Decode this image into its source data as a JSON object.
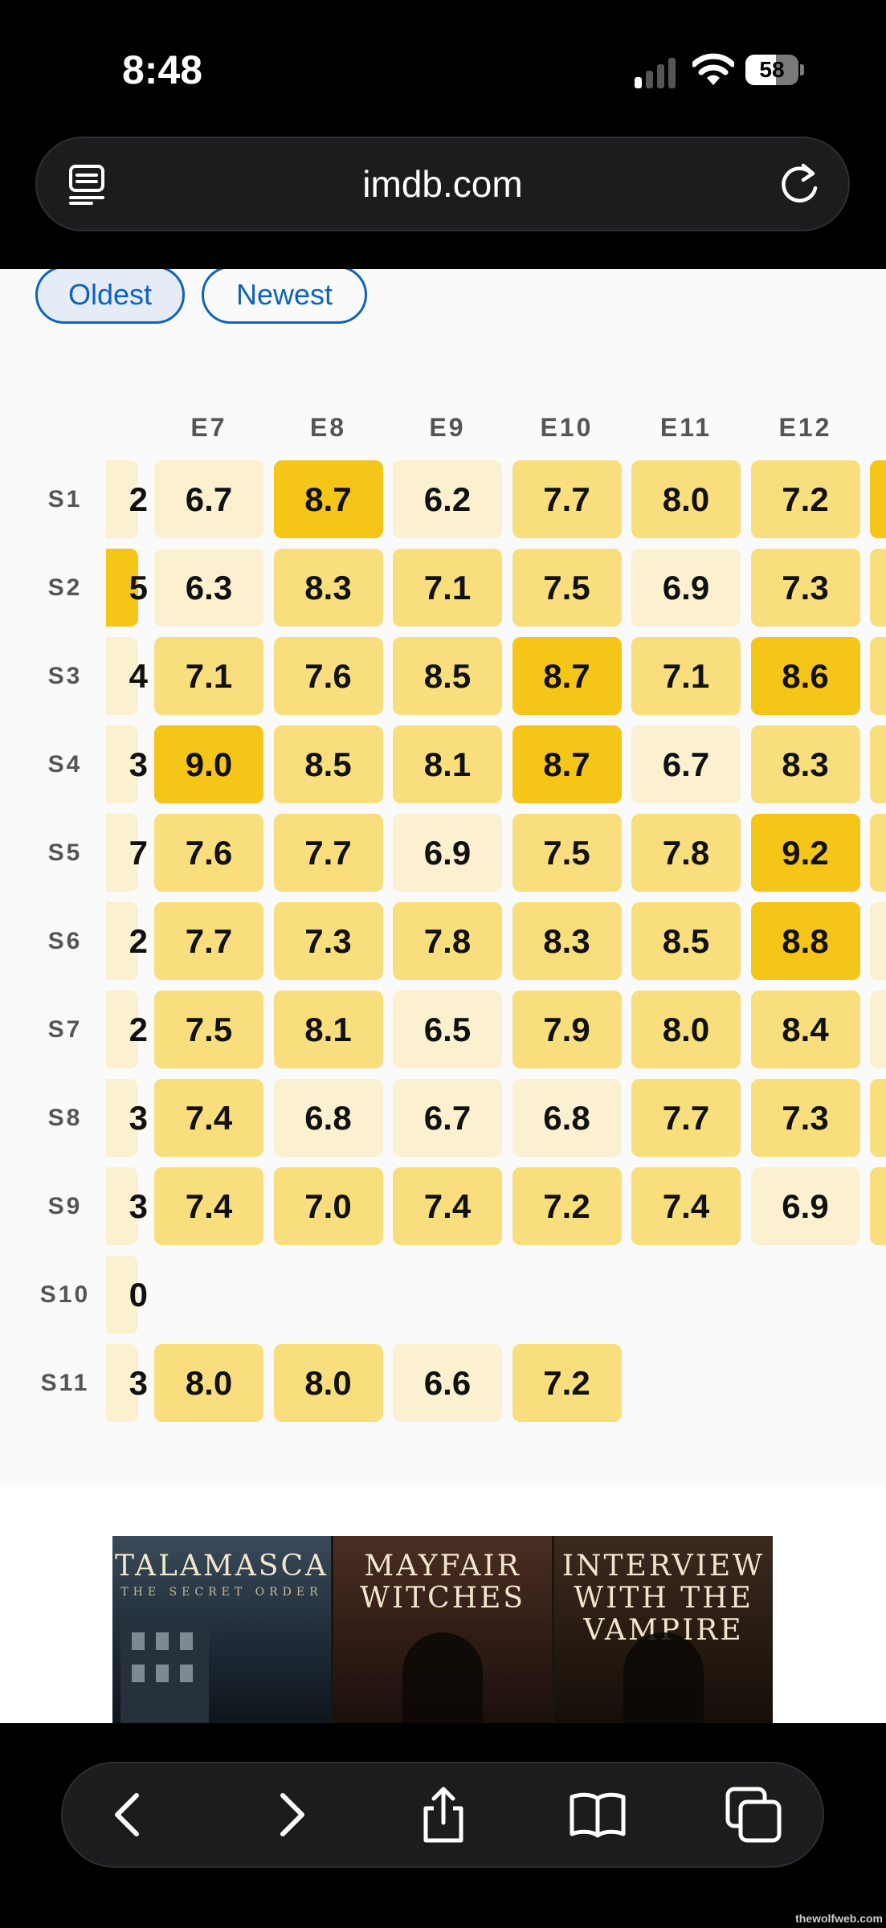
{
  "status_bar": {
    "time": "8:48",
    "battery_percent": "58",
    "battery_level": 0.58,
    "signal_bars": 1
  },
  "browser": {
    "url": "imdb.com"
  },
  "sort": {
    "options": [
      {
        "label": "Oldest",
        "active": true
      },
      {
        "label": "Newest",
        "active": false
      }
    ]
  },
  "grid": {
    "partial_column": [
      "2",
      "5",
      "4",
      "3",
      "7",
      "2",
      "2",
      "3",
      "3",
      "0",
      "3"
    ],
    "partial_column_levels": [
      1,
      3,
      1,
      1,
      1,
      1,
      1,
      1,
      1,
      1,
      1
    ],
    "episodes": [
      "E7",
      "E8",
      "E9",
      "E10",
      "E11",
      "E12"
    ],
    "seasons": [
      "S1",
      "S2",
      "S3",
      "S4",
      "S5",
      "S6",
      "S7",
      "S8",
      "S9",
      "S10",
      "S11"
    ],
    "ratings": [
      [
        "6.7",
        "8.7",
        "6.2",
        "7.7",
        "8.0",
        "7.2"
      ],
      [
        "6.3",
        "8.3",
        "7.1",
        "7.5",
        "6.9",
        "7.3"
      ],
      [
        "7.1",
        "7.6",
        "8.5",
        "8.7",
        "7.1",
        "8.6"
      ],
      [
        "9.0",
        "8.5",
        "8.1",
        "8.7",
        "6.7",
        "8.3"
      ],
      [
        "7.6",
        "7.7",
        "6.9",
        "7.5",
        "7.8",
        "9.2"
      ],
      [
        "7.7",
        "7.3",
        "7.8",
        "8.3",
        "8.5",
        "8.8"
      ],
      [
        "7.5",
        "8.1",
        "6.5",
        "7.9",
        "8.0",
        "8.4"
      ],
      [
        "7.4",
        "6.8",
        "6.7",
        "6.8",
        "7.7",
        "7.3"
      ],
      [
        "7.4",
        "7.0",
        "7.4",
        "7.2",
        "7.4",
        "6.9"
      ],
      [],
      [
        "8.0",
        "8.0",
        "6.6",
        "7.2"
      ]
    ],
    "next_column_levels": [
      3,
      2,
      2,
      2,
      2,
      1,
      1,
      2,
      2,
      0,
      0
    ],
    "colors": {
      "low": "#fbf0d0",
      "mid": "#f8de7d",
      "high": "#f5c518"
    }
  },
  "promo": {
    "posters": [
      {
        "title": "TALAMASCA",
        "subtitle": "THE SECRET ORDER"
      },
      {
        "title": "MAYFAIR WITCHES",
        "subtitle": ""
      },
      {
        "title": "INTERVIEW WITH THE VAMPIRE",
        "subtitle": ""
      }
    ]
  },
  "toolbar": {
    "buttons": [
      "back-icon",
      "forward-icon",
      "share-icon",
      "bookmarks-icon",
      "tabs-icon"
    ]
  },
  "watermark": "thewolfweb.com"
}
